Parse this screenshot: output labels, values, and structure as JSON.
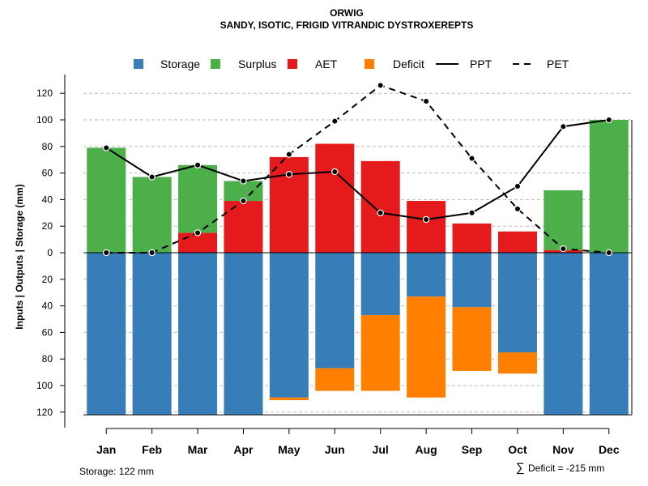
{
  "chart_data": {
    "type": "bar",
    "title": "ORWIG",
    "subtitle": "SANDY, ISOTIC, FRIGID VITRANDIC DYSTROXEREPTS",
    "ylabel": "Inputs | Outputs | Storage    (mm)",
    "ylim": [
      -125,
      130
    ],
    "y_ticks": [
      120,
      100,
      80,
      60,
      40,
      20,
      0,
      -20,
      -40,
      -60,
      -80,
      -100,
      -120
    ],
    "y_tick_labels": [
      "120",
      "100",
      "80",
      "60",
      "40",
      "20",
      "0",
      "20",
      "40",
      "60",
      "80",
      "100",
      "120"
    ],
    "grid": "dashed horizontal",
    "legend_position": "top",
    "categories": [
      "Jan",
      "Feb",
      "Mar",
      "Apr",
      "May",
      "Jun",
      "Jul",
      "Aug",
      "Sep",
      "Oct",
      "Nov",
      "Dec"
    ],
    "legend": [
      {
        "key": "storage",
        "label": "Storage",
        "kind": "box",
        "color": "#377EB8"
      },
      {
        "key": "surplus",
        "label": "Surplus",
        "kind": "box",
        "color": "#4DAF4A"
      },
      {
        "key": "aet",
        "label": "AET",
        "kind": "box",
        "color": "#E41A1C"
      },
      {
        "key": "deficit",
        "label": "Deficit",
        "kind": "box",
        "color": "#FF7F00"
      },
      {
        "key": "ppt",
        "label": "PPT",
        "kind": "solid",
        "color": "#000000"
      },
      {
        "key": "pet",
        "label": "PET",
        "kind": "dashed",
        "color": "#000000"
      }
    ],
    "series": [
      {
        "name": "AET",
        "color": "#E41A1C",
        "values": [
          0,
          0,
          15,
          39,
          72,
          82,
          69,
          39,
          22,
          16,
          2,
          0
        ]
      },
      {
        "name": "Surplus",
        "color": "#4DAF4A",
        "values": [
          79,
          57,
          51,
          15,
          0,
          0,
          0,
          0,
          0,
          0,
          45,
          100
        ]
      },
      {
        "name": "Storage",
        "color": "#377EB8",
        "values": [
          122,
          122,
          122,
          122,
          109,
          87,
          47,
          33,
          41,
          75,
          122,
          122
        ]
      },
      {
        "name": "Deficit",
        "color": "#FF7F00",
        "values": [
          0,
          0,
          0,
          0,
          2,
          17,
          57,
          76,
          48,
          16,
          0,
          0
        ]
      },
      {
        "name": "PPT",
        "color": "#000000",
        "line": "solid",
        "values": [
          79,
          57,
          66,
          54,
          59,
          61,
          30,
          25,
          30,
          50,
          95,
          100
        ]
      },
      {
        "name": "PET",
        "color": "#000000",
        "line": "dashed",
        "values": [
          0,
          0,
          15,
          39,
          74,
          99,
          126,
          114,
          71,
          33,
          3,
          0
        ]
      }
    ],
    "annotations": {
      "storage": "Storage: 122 mm",
      "deficit_symbol": "∑",
      "deficit": "Deficit = -215 mm"
    }
  }
}
